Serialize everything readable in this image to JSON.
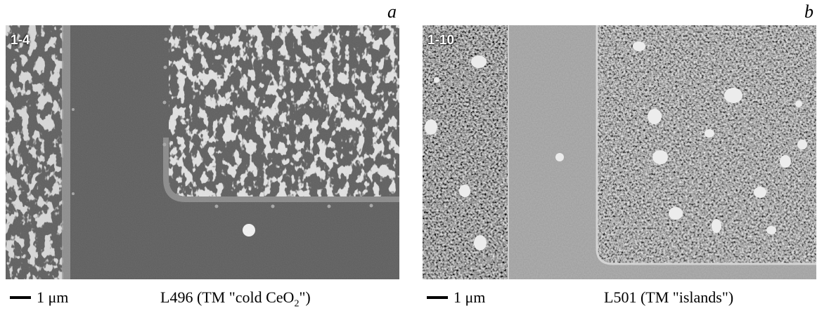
{
  "panels": [
    {
      "letter": "a",
      "sample_id": "1-4",
      "scalebar_label": "1 μm",
      "caption_prefix": "L496 (TM \"cold CeO",
      "caption_sub": "2",
      "caption_suffix": "\")"
    },
    {
      "letter": "b",
      "sample_id": "1-10",
      "scalebar_label": "1 μm",
      "caption": "L501 (TM \"islands\")"
    }
  ]
}
